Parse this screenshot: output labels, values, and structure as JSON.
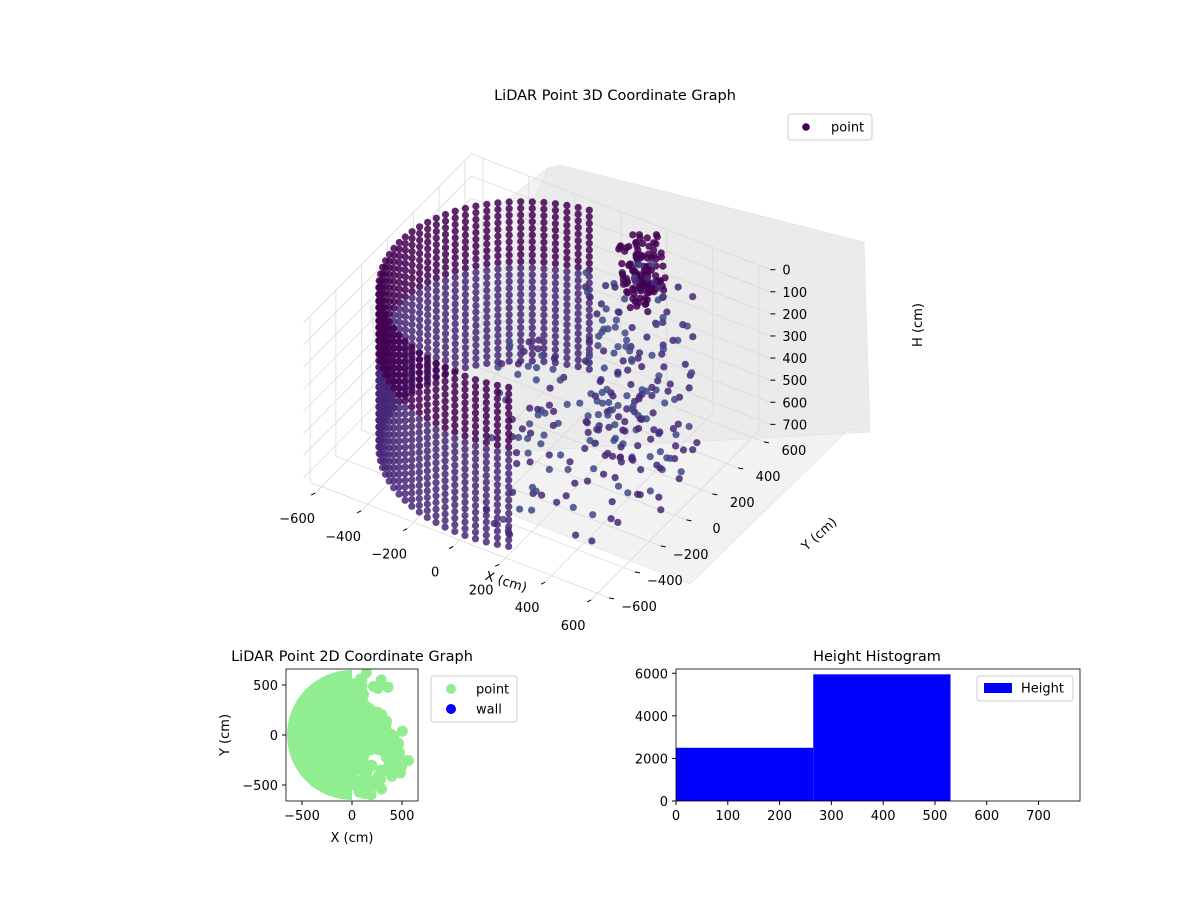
{
  "chart_data": [
    {
      "type": "scatter",
      "title": "LiDAR Point 3D Coordinate Graph",
      "xlabel": "X (cm)",
      "ylabel": "Y (cm)",
      "zlabel": "H (cm)",
      "xlim": [
        -650,
        650
      ],
      "ylim": [
        -650,
        650
      ],
      "zlim": [
        0,
        750
      ],
      "z_inverted": true,
      "x_ticks": [
        "−600",
        "−400",
        "−200",
        "0",
        "200",
        "400",
        "600"
      ],
      "y_ticks": [
        "−600",
        "−400",
        "−200",
        "0",
        "200",
        "400",
        "600"
      ],
      "z_ticks": [
        "0",
        "100",
        "200",
        "300",
        "400",
        "500",
        "600",
        "700"
      ],
      "legend": [
        "point"
      ],
      "legend_placement": "top-right",
      "grid": true,
      "colormap": [
        "#440154",
        "#482878",
        "#3e4a89"
      ],
      "shape_description": "points on a cylindrical wall of radius ~600 cm spanning heights 0-720 cm on the -X side, dense cluster near (150, 600) at heights 0-270, sparse scattered points at radius ~300-600 on the +X side"
    },
    {
      "type": "scatter",
      "title": "LiDAR Point 2D Coordinate Graph",
      "xlabel": "X (cm)",
      "ylabel": "Y (cm)",
      "xlim": [
        -660,
        660
      ],
      "ylim": [
        -660,
        660
      ],
      "x_ticks": [
        "−500",
        "0",
        "500"
      ],
      "y_ticks": [
        "500",
        "0",
        "−500"
      ],
      "legend": [
        "point",
        "wall"
      ],
      "legend_placement": "outside-right",
      "series_colors": {
        "point": "#90ee90",
        "wall": "#0000ff"
      }
    },
    {
      "type": "bar",
      "title": "Height Histogram",
      "bins": [
        [
          0,
          265,
          2500
        ],
        [
          265,
          530,
          5950
        ]
      ],
      "xlim": [
        0,
        780
      ],
      "ylim": [
        0,
        6200
      ],
      "x_ticks": [
        "0",
        "100",
        "200",
        "300",
        "400",
        "500",
        "600",
        "700"
      ],
      "y_ticks": [
        "0",
        "2000",
        "4000",
        "6000"
      ],
      "legend": [
        "Height"
      ],
      "legend_placement": "top-right",
      "bar_color": "#0000ff"
    }
  ]
}
